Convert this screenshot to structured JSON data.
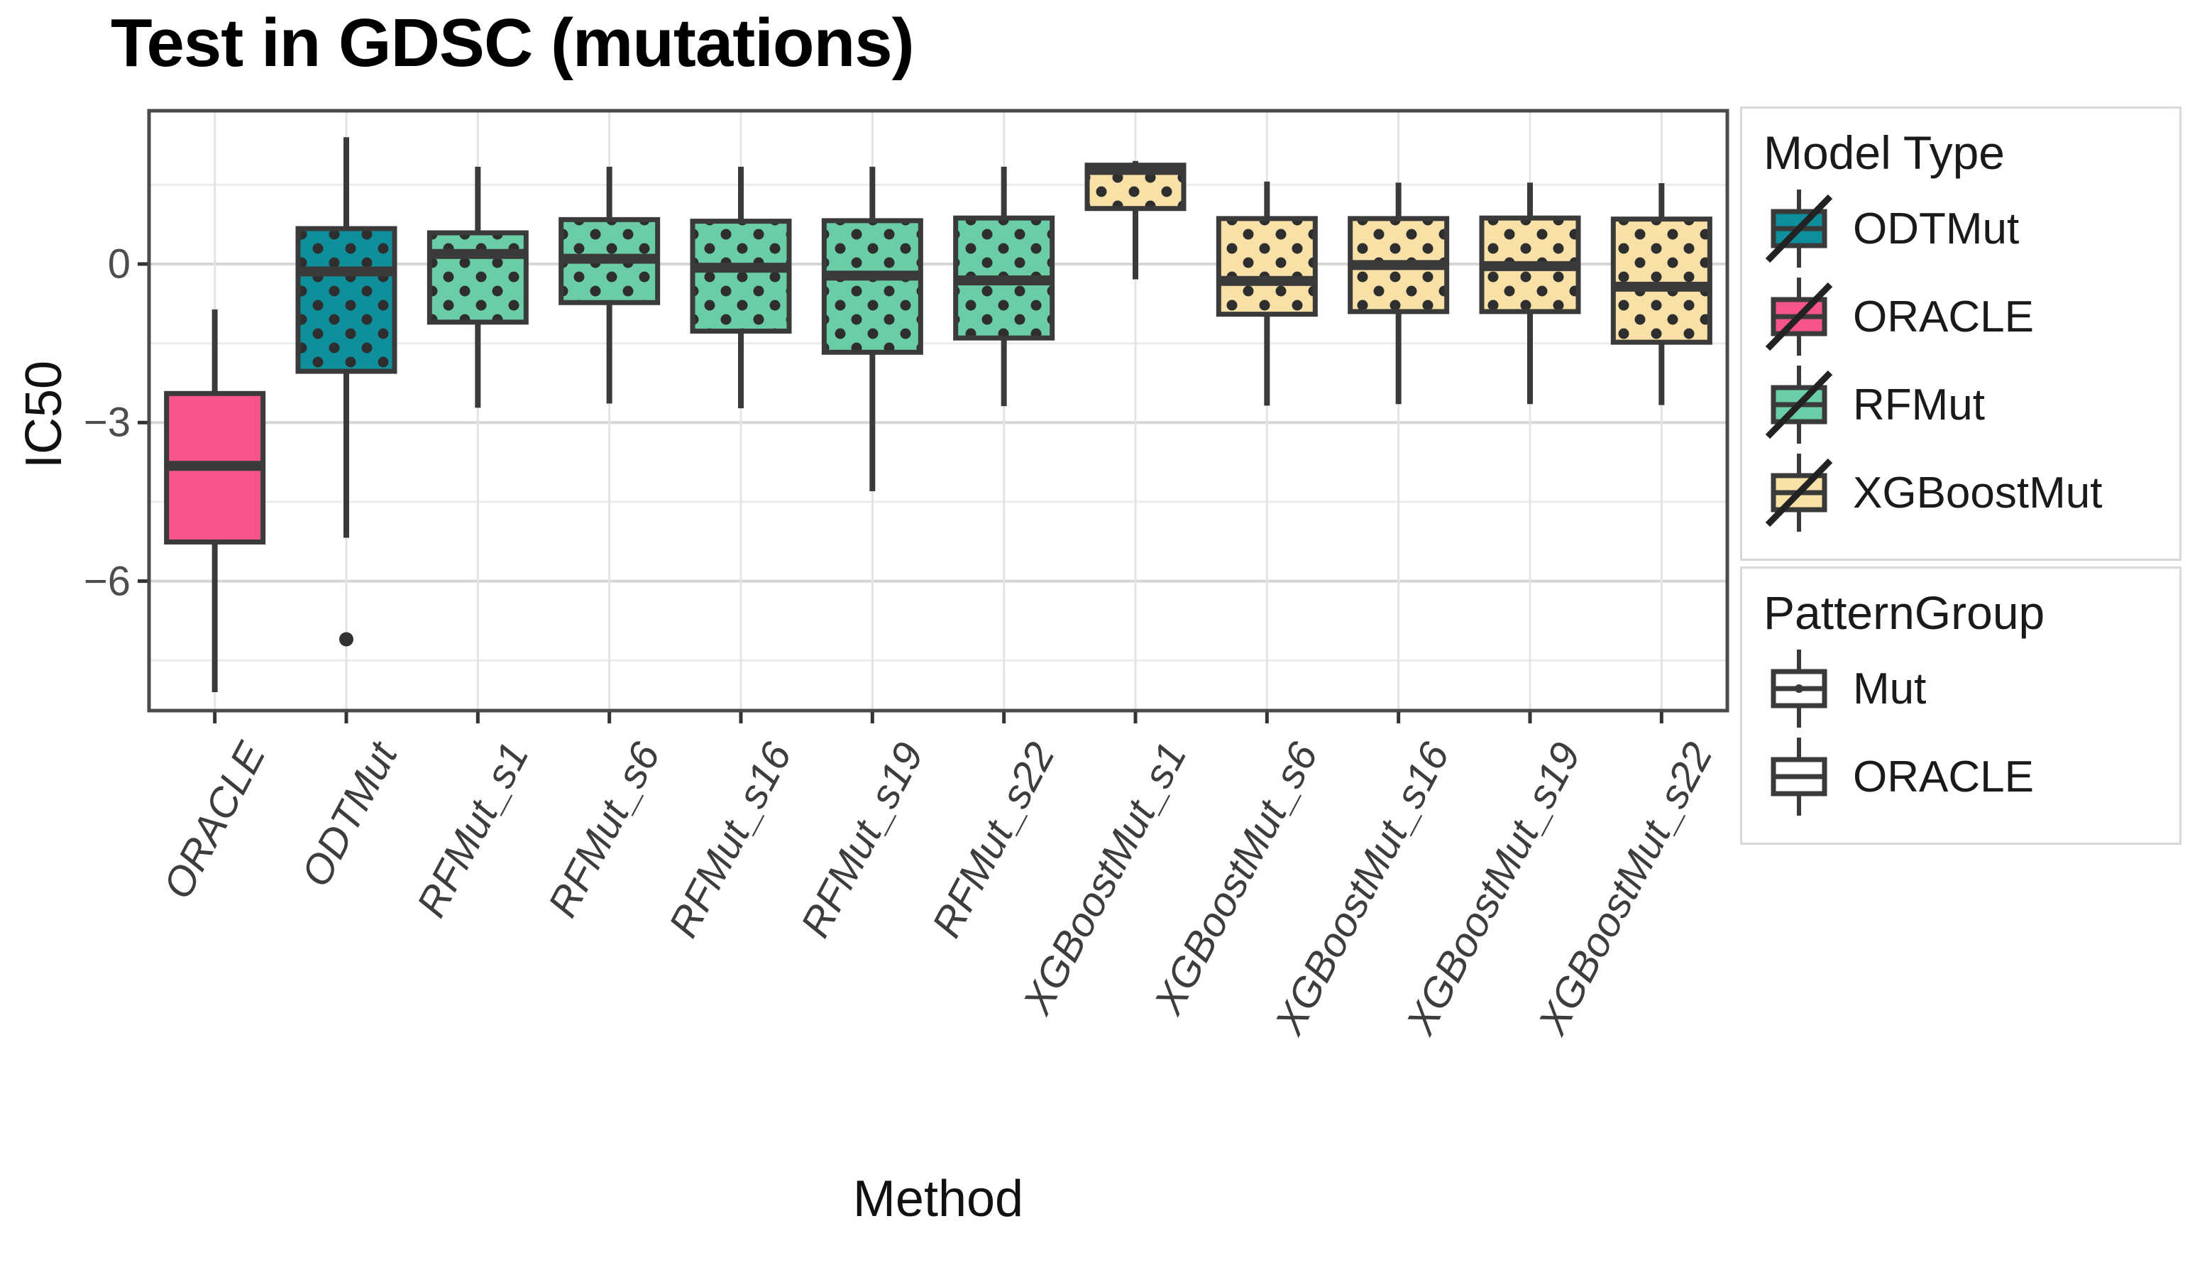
{
  "title": "Test in GDSC (mutations)",
  "chart_data": {
    "type": "boxplot",
    "title": "Test in GDSC (mutations)",
    "xlabel": "Method",
    "ylabel": "IC50",
    "ylim": [
      -8.45,
      2.9
    ],
    "y_major_ticks": [
      0,
      -3,
      -6
    ],
    "y_minor_gridlines": [
      1.5,
      -1.5,
      -4.5,
      -7.5
    ],
    "grid": true,
    "legend_position": "right",
    "categories": [
      "ORACLE",
      "ODTMut",
      "RFMut_s1",
      "RFMut_s6",
      "RFMut_s16",
      "RFMut_s19",
      "RFMut_s22",
      "XGBoostMut_s1",
      "XGBoostMut_s6",
      "XGBoostMut_s16",
      "XGBoostMut_s19",
      "XGBoostMut_s22"
    ],
    "boxes": [
      {
        "label": "ORACLE",
        "model": "ORACLE",
        "pattern": "plain",
        "whisker_low": -8.1,
        "q1": -5.26,
        "median": -3.82,
        "q3": -2.45,
        "whisker_high": -0.86,
        "outliers": []
      },
      {
        "label": "ODTMut",
        "model": "ODTMut",
        "pattern": "dots",
        "whisker_low": -5.18,
        "q1": -2.03,
        "median": -0.14,
        "q3": 0.67,
        "whisker_high": 2.4,
        "outliers": [
          -7.1
        ]
      },
      {
        "label": "RFMut_s1",
        "model": "RFMut",
        "pattern": "dots",
        "whisker_low": -2.72,
        "q1": -1.1,
        "median": 0.19,
        "q3": 0.59,
        "whisker_high": 1.84,
        "outliers": []
      },
      {
        "label": "RFMut_s6",
        "model": "RFMut",
        "pattern": "dots",
        "whisker_low": -2.64,
        "q1": -0.73,
        "median": 0.1,
        "q3": 0.84,
        "whisker_high": 1.84,
        "outliers": []
      },
      {
        "label": "RFMut_s16",
        "model": "RFMut",
        "pattern": "dots",
        "whisker_low": -2.73,
        "q1": -1.27,
        "median": -0.07,
        "q3": 0.81,
        "whisker_high": 1.84,
        "outliers": []
      },
      {
        "label": "RFMut_s19",
        "model": "RFMut",
        "pattern": "dots",
        "whisker_low": -4.3,
        "q1": -1.67,
        "median": -0.22,
        "q3": 0.82,
        "whisker_high": 1.84,
        "outliers": []
      },
      {
        "label": "RFMut_s22",
        "model": "RFMut",
        "pattern": "dots",
        "whisker_low": -2.69,
        "q1": -1.4,
        "median": -0.31,
        "q3": 0.87,
        "whisker_high": 1.84,
        "outliers": []
      },
      {
        "label": "XGBoostMut_s1",
        "model": "XGBoostMut",
        "pattern": "dots",
        "whisker_low": -0.29,
        "q1": 1.05,
        "median": 1.78,
        "q3": 1.87,
        "whisker_high": 1.95,
        "outliers": []
      },
      {
        "label": "XGBoostMut_s6",
        "model": "XGBoostMut",
        "pattern": "dots",
        "whisker_low": -2.68,
        "q1": -0.95,
        "median": -0.32,
        "q3": 0.86,
        "whisker_high": 1.56,
        "outliers": []
      },
      {
        "label": "XGBoostMut_s16",
        "model": "XGBoostMut",
        "pattern": "dots",
        "whisker_low": -2.65,
        "q1": -0.9,
        "median": -0.02,
        "q3": 0.86,
        "whisker_high": 1.54,
        "outliers": []
      },
      {
        "label": "XGBoostMut_s19",
        "model": "XGBoostMut",
        "pattern": "dots",
        "whisker_low": -2.65,
        "q1": -0.9,
        "median": -0.04,
        "q3": 0.87,
        "whisker_high": 1.54,
        "outliers": []
      },
      {
        "label": "XGBoostMut_s22",
        "model": "XGBoostMut",
        "pattern": "dots",
        "whisker_low": -2.67,
        "q1": -1.48,
        "median": -0.43,
        "q3": 0.85,
        "whisker_high": 1.53,
        "outliers": []
      }
    ],
    "model_colors": {
      "ODTMut": "#0F8F9B",
      "ORACLE": "#F8548C",
      "RFMut": "#6ACDA6",
      "XGBoostMut": "#F8E0A6"
    },
    "style_colors": {
      "box_border": "#3a3a3a",
      "panel_border": "#4a4a4a",
      "grid_major": "#d6d6d6",
      "grid_minor": "#ececec",
      "dot": "#2e2e2e",
      "outlier": "#333333"
    }
  },
  "legends": {
    "model_type": {
      "title": "Model Type",
      "items": [
        {
          "label": "ODTMut",
          "color": "#0F8F9B"
        },
        {
          "label": "ORACLE",
          "color": "#F8548C"
        },
        {
          "label": "RFMut",
          "color": "#6ACDA6"
        },
        {
          "label": "XGBoostMut",
          "color": "#F8E0A6"
        }
      ]
    },
    "pattern_group": {
      "title": "PatternGroup",
      "items": [
        {
          "label": "Mut",
          "glyph": "boxplot-dotted"
        },
        {
          "label": "ORACLE",
          "glyph": "boxplot-plain"
        }
      ]
    }
  }
}
